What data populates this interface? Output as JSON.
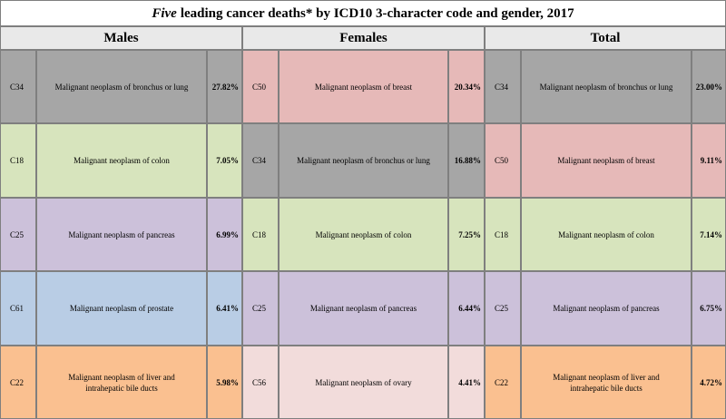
{
  "title": {
    "lead": "Five",
    "rest": "leading cancer deaths* by ICD10 3-character code and gender, 2017"
  },
  "columns": [
    "Males",
    "Females",
    "Total"
  ],
  "colors": {
    "lung": "#a6a6a6",
    "breast": "#e6b9b8",
    "colon": "#d7e4bd",
    "pancreas": "#ccc1da",
    "prostate": "#b9cde5",
    "liver": "#fac090",
    "ovary": "#f2dcdb"
  },
  "rows": [
    {
      "males": {
        "code": "C34",
        "name": "Malignant neoplasm of bronchus or lung",
        "pct": "27.82%"
      },
      "females": {
        "code": "C50",
        "name": "Malignant neoplasm of breast",
        "pct": "20.34%"
      },
      "total": {
        "code": "C34",
        "name": "Malignant neoplasm of bronchus or lung",
        "pct": "23.00%"
      }
    },
    {
      "males": {
        "code": "C18",
        "name": "Malignant neoplasm of colon",
        "pct": "7.05%"
      },
      "females": {
        "code": "C34",
        "name": "Malignant neoplasm of bronchus or lung",
        "pct": "16.88%"
      },
      "total": {
        "code": "C50",
        "name": "Malignant neoplasm of breast",
        "pct": "9.11%"
      }
    },
    {
      "males": {
        "code": "C25",
        "name": "Malignant neoplasm of pancreas",
        "pct": "6.99%"
      },
      "females": {
        "code": "C18",
        "name": "Malignant neoplasm of colon",
        "pct": "7.25%"
      },
      "total": {
        "code": "C18",
        "name": "Malignant neoplasm of colon",
        "pct": "7.14%"
      }
    },
    {
      "males": {
        "code": "C61",
        "name": "Malignant neoplasm of prostate",
        "pct": "6.41%"
      },
      "females": {
        "code": "C25",
        "name": "Malignant neoplasm of pancreas",
        "pct": "6.44%"
      },
      "total": {
        "code": "C25",
        "name": "Malignant neoplasm of pancreas",
        "pct": "6.75%"
      }
    },
    {
      "males": {
        "code": "C22",
        "name": "Malignant neoplasm of liver and intrahepatic bile ducts",
        "pct": "5.98%"
      },
      "females": {
        "code": "C56",
        "name": "Malignant neoplasm of ovary",
        "pct": "4.41%"
      },
      "total": {
        "code": "C22",
        "name": "Malignant neoplasm of liver and intrahepatic bile ducts",
        "pct": "4.72%"
      }
    }
  ]
}
